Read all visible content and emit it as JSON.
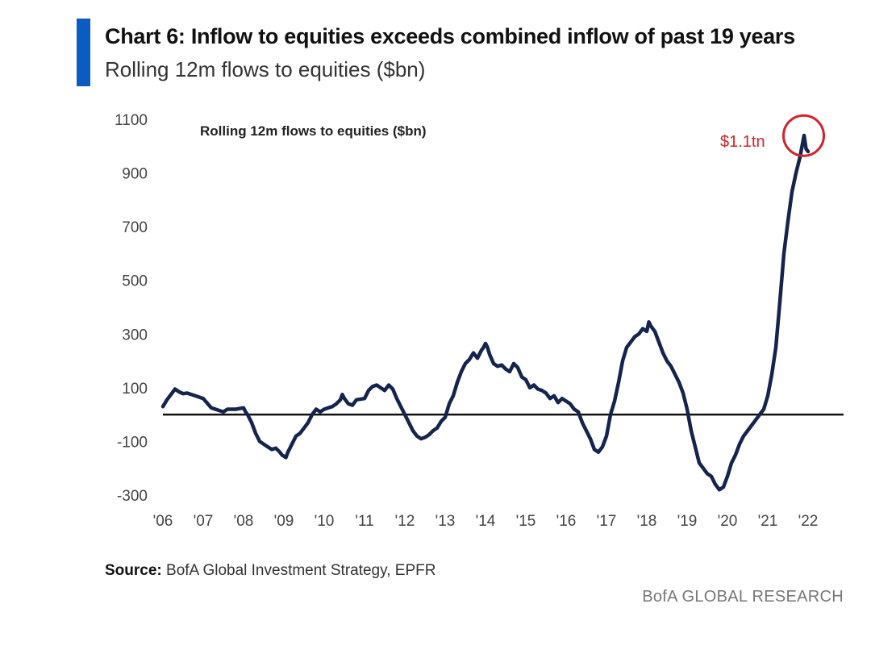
{
  "header": {
    "title": "Chart 6: Inflow to equities exceeds combined inflow of past 19 years",
    "subtitle": "Rolling 12m flows to equities ($bn)"
  },
  "footer": {
    "source_label": "Source:",
    "source_text": "BofA Global Investment Strategy, EPFR",
    "brand": "BofA GLOBAL RESEARCH"
  },
  "colors": {
    "line": "#14244d",
    "accent": "#0a5cc2",
    "annotation": "#d4222a"
  },
  "chart_data": {
    "type": "line",
    "inner_title": "Rolling 12m flows to equities ($bn)",
    "xlabel": "",
    "ylabel": "",
    "ylim": [
      -300,
      1100
    ],
    "xlim": [
      2006.0,
      2022.9
    ],
    "y_ticks": [
      "1100",
      "900",
      "700",
      "500",
      "300",
      "100",
      "-100",
      "-300"
    ],
    "y_tick_values": [
      1100,
      900,
      700,
      500,
      300,
      100,
      -100,
      -300
    ],
    "x_ticks": [
      "'06",
      "'07",
      "'08",
      "'09",
      "'10",
      "'11",
      "'12",
      "'13",
      "'14",
      "'15",
      "'16",
      "'17",
      "'18",
      "'19",
      "'20",
      "'21",
      "'22"
    ],
    "x_tick_values": [
      2006,
      2007,
      2008,
      2009,
      2010,
      2011,
      2012,
      2013,
      2014,
      2015,
      2016,
      2017,
      2018,
      2019,
      2020,
      2021,
      2022
    ],
    "grid": false,
    "zero_line": true,
    "annotation": {
      "text": "$1.1tn",
      "x": 2021.8,
      "y": 1010
    },
    "series": [
      {
        "name": "",
        "x": [
          2006.0,
          2006.1,
          2006.2,
          2006.3,
          2006.4,
          2006.5,
          2006.6,
          2006.8,
          2007.0,
          2007.2,
          2007.4,
          2007.5,
          2007.6,
          2007.8,
          2008.0,
          2008.05,
          2008.1,
          2008.2,
          2008.3,
          2008.4,
          2008.5,
          2008.6,
          2008.7,
          2008.8,
          2008.9,
          2008.95,
          2009.05,
          2009.1,
          2009.2,
          2009.3,
          2009.4,
          2009.5,
          2009.6,
          2009.7,
          2009.8,
          2009.9,
          2010.0,
          2010.1,
          2010.2,
          2010.3,
          2010.4,
          2010.45,
          2010.5,
          2010.6,
          2010.7,
          2010.8,
          2011.0,
          2011.1,
          2011.2,
          2011.3,
          2011.4,
          2011.5,
          2011.6,
          2011.7,
          2011.8,
          2011.9,
          2012.0,
          2012.1,
          2012.2,
          2012.3,
          2012.4,
          2012.5,
          2012.6,
          2012.7,
          2012.8,
          2012.9,
          2013.0,
          2013.1,
          2013.2,
          2013.3,
          2013.4,
          2013.5,
          2013.6,
          2013.7,
          2013.8,
          2013.9,
          2013.95,
          2014.0,
          2014.05,
          2014.1,
          2014.2,
          2014.3,
          2014.4,
          2014.5,
          2014.6,
          2014.7,
          2014.8,
          2014.9,
          2015.0,
          2015.1,
          2015.2,
          2015.3,
          2015.4,
          2015.5,
          2015.6,
          2015.7,
          2015.8,
          2015.9,
          2016.0,
          2016.1,
          2016.2,
          2016.3,
          2016.4,
          2016.5,
          2016.6,
          2016.7,
          2016.8,
          2016.9,
          2017.0,
          2017.1,
          2017.2,
          2017.3,
          2017.4,
          2017.5,
          2017.6,
          2017.7,
          2017.8,
          2017.9,
          2018.0,
          2018.05,
          2018.1,
          2018.2,
          2018.3,
          2018.4,
          2018.5,
          2018.6,
          2018.7,
          2018.8,
          2018.9,
          2019.0,
          2019.1,
          2019.2,
          2019.3,
          2019.4,
          2019.5,
          2019.6,
          2019.7,
          2019.8,
          2019.9,
          2020.0,
          2020.1,
          2020.2,
          2020.3,
          2020.4,
          2020.5,
          2020.6,
          2020.7,
          2020.8,
          2020.9,
          2021.0,
          2021.1,
          2021.2,
          2021.3,
          2021.4,
          2021.5,
          2021.6,
          2021.7,
          2021.8,
          2021.85,
          2021.9,
          2021.95,
          2022.0
        ],
        "values": [
          30,
          55,
          75,
          95,
          85,
          78,
          80,
          70,
          60,
          25,
          15,
          10,
          20,
          20,
          25,
          10,
          0,
          -30,
          -70,
          -100,
          -110,
          -120,
          -130,
          -125,
          -140,
          -150,
          -160,
          -140,
          -110,
          -80,
          -70,
          -50,
          -30,
          0,
          20,
          10,
          20,
          25,
          30,
          40,
          55,
          75,
          60,
          40,
          35,
          55,
          60,
          90,
          105,
          110,
          100,
          90,
          110,
          95,
          60,
          30,
          0,
          -30,
          -60,
          -80,
          -90,
          -85,
          -75,
          -60,
          -50,
          -25,
          -10,
          40,
          70,
          120,
          160,
          190,
          205,
          230,
          210,
          240,
          250,
          265,
          250,
          225,
          190,
          180,
          185,
          170,
          160,
          190,
          175,
          140,
          130,
          100,
          110,
          95,
          90,
          80,
          60,
          70,
          45,
          60,
          50,
          40,
          20,
          10,
          -30,
          -60,
          -90,
          -130,
          -140,
          -120,
          -80,
          0,
          50,
          120,
          200,
          250,
          270,
          290,
          300,
          320,
          310,
          345,
          330,
          310,
          270,
          230,
          200,
          180,
          150,
          120,
          80,
          20,
          -60,
          -120,
          -180,
          -200,
          -220,
          -230,
          -260,
          -280,
          -270,
          -230,
          -180,
          -150,
          -110,
          -80,
          -60,
          -40,
          -20,
          0,
          20,
          70,
          150,
          250,
          420,
          600,
          720,
          830,
          900,
          960,
          1000,
          1040,
          990,
          980
        ]
      }
    ]
  }
}
